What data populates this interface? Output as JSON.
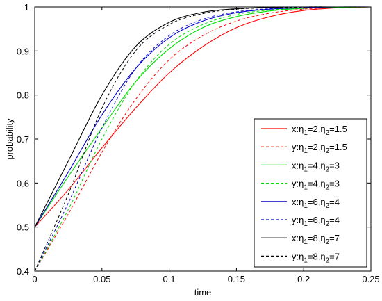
{
  "chart_data": {
    "type": "line",
    "xlabel": "time",
    "ylabel": "probability",
    "xlim": [
      0,
      0.25
    ],
    "ylim": [
      0.4,
      1.0
    ],
    "xticks": [
      "0",
      "0.05",
      "0.1",
      "0.15",
      "0.2",
      "0.25"
    ],
    "yticks": [
      "0.4",
      "0.5",
      "0.6",
      "0.7",
      "0.8",
      "0.9",
      "1"
    ],
    "grid": false,
    "legend_position": "lower-right",
    "series": [
      {
        "name": "x:η1=2,η2=1.5",
        "label_main": "x:η",
        "sub1": "1",
        "mid": "=2,η",
        "sub2": "2",
        "tail": "=1.5",
        "color": "#ff0000",
        "style": "solid",
        "x": [
          0,
          0.025,
          0.05,
          0.075,
          0.1,
          0.125,
          0.15,
          0.175,
          0.2,
          0.225,
          0.25
        ],
        "y": [
          0.5,
          0.585,
          0.68,
          0.77,
          0.85,
          0.91,
          0.953,
          0.978,
          0.992,
          0.998,
          1.0
        ]
      },
      {
        "name": "y:η1=2,η2=1.5",
        "label_main": "y:η",
        "sub1": "1",
        "mid": "=2,η",
        "sub2": "2",
        "tail": "=1.5",
        "color": "#ff0000",
        "style": "dashed",
        "x": [
          0,
          0.025,
          0.05,
          0.075,
          0.1,
          0.125,
          0.15,
          0.175,
          0.2,
          0.225,
          0.25
        ],
        "y": [
          0.4,
          0.53,
          0.67,
          0.79,
          0.88,
          0.935,
          0.968,
          0.986,
          0.995,
          0.999,
          1.0
        ]
      },
      {
        "name": "x:η1=4,η2=3",
        "label_main": "x:η",
        "sub1": "1",
        "mid": "=4,η",
        "sub2": "2",
        "tail": "=3",
        "color": "#00dd00",
        "style": "solid",
        "x": [
          0,
          0.025,
          0.05,
          0.075,
          0.1,
          0.125,
          0.15,
          0.175,
          0.2,
          0.225,
          0.25
        ],
        "y": [
          0.5,
          0.615,
          0.725,
          0.83,
          0.905,
          0.953,
          0.978,
          0.991,
          0.997,
          0.999,
          1.0
        ]
      },
      {
        "name": "y:η1=4,η2=3",
        "label_main": "y:η",
        "sub1": "1",
        "mid": "=4,η",
        "sub2": "2",
        "tail": "=3",
        "color": "#00dd00",
        "style": "dashed",
        "x": [
          0,
          0.025,
          0.05,
          0.075,
          0.1,
          0.125,
          0.15,
          0.175,
          0.2,
          0.225,
          0.25
        ],
        "y": [
          0.4,
          0.54,
          0.7,
          0.83,
          0.915,
          0.96,
          0.983,
          0.993,
          0.998,
          1.0,
          1.0
        ]
      },
      {
        "name": "x:η1=6,η2=4",
        "label_main": "x:η",
        "sub1": "1",
        "mid": "=6,η",
        "sub2": "2",
        "tail": "=4",
        "color": "#0000cc",
        "style": "solid",
        "x": [
          0,
          0.025,
          0.05,
          0.075,
          0.1,
          0.125,
          0.15,
          0.175,
          0.2,
          0.225,
          0.25
        ],
        "y": [
          0.5,
          0.625,
          0.755,
          0.86,
          0.93,
          0.968,
          0.987,
          0.995,
          0.998,
          1.0,
          1.0
        ]
      },
      {
        "name": "y:η1=6,η2=4",
        "label_main": "y:η",
        "sub1": "1",
        "mid": "=6,η",
        "sub2": "2",
        "tail": "=4",
        "color": "#0000cc",
        "style": "dashed",
        "x": [
          0,
          0.025,
          0.05,
          0.075,
          0.1,
          0.125,
          0.15,
          0.175,
          0.2,
          0.225,
          0.25
        ],
        "y": [
          0.4,
          0.555,
          0.725,
          0.86,
          0.935,
          0.972,
          0.989,
          0.996,
          0.999,
          1.0,
          1.0
        ]
      },
      {
        "name": "x:η1=8,η2=7",
        "label_main": "x:η",
        "sub1": "1",
        "mid": "=8,η",
        "sub2": "2",
        "tail": "=7",
        "color": "#000000",
        "style": "solid",
        "x": [
          0,
          0.025,
          0.05,
          0.075,
          0.1,
          0.125,
          0.15,
          0.175,
          0.2,
          0.225,
          0.25
        ],
        "y": [
          0.5,
          0.65,
          0.8,
          0.91,
          0.965,
          0.988,
          0.996,
          0.999,
          1.0,
          1.0,
          1.0
        ]
      },
      {
        "name": "y:η1=8,η2=7",
        "label_main": "y:η",
        "sub1": "1",
        "mid": "=8,η",
        "sub2": "2",
        "tail": "=7",
        "color": "#000000",
        "style": "dashed",
        "x": [
          0,
          0.025,
          0.05,
          0.075,
          0.1,
          0.125,
          0.15,
          0.175,
          0.2,
          0.225,
          0.25
        ],
        "y": [
          0.4,
          0.575,
          0.77,
          0.9,
          0.96,
          0.985,
          0.995,
          0.998,
          1.0,
          1.0,
          1.0
        ]
      }
    ]
  }
}
